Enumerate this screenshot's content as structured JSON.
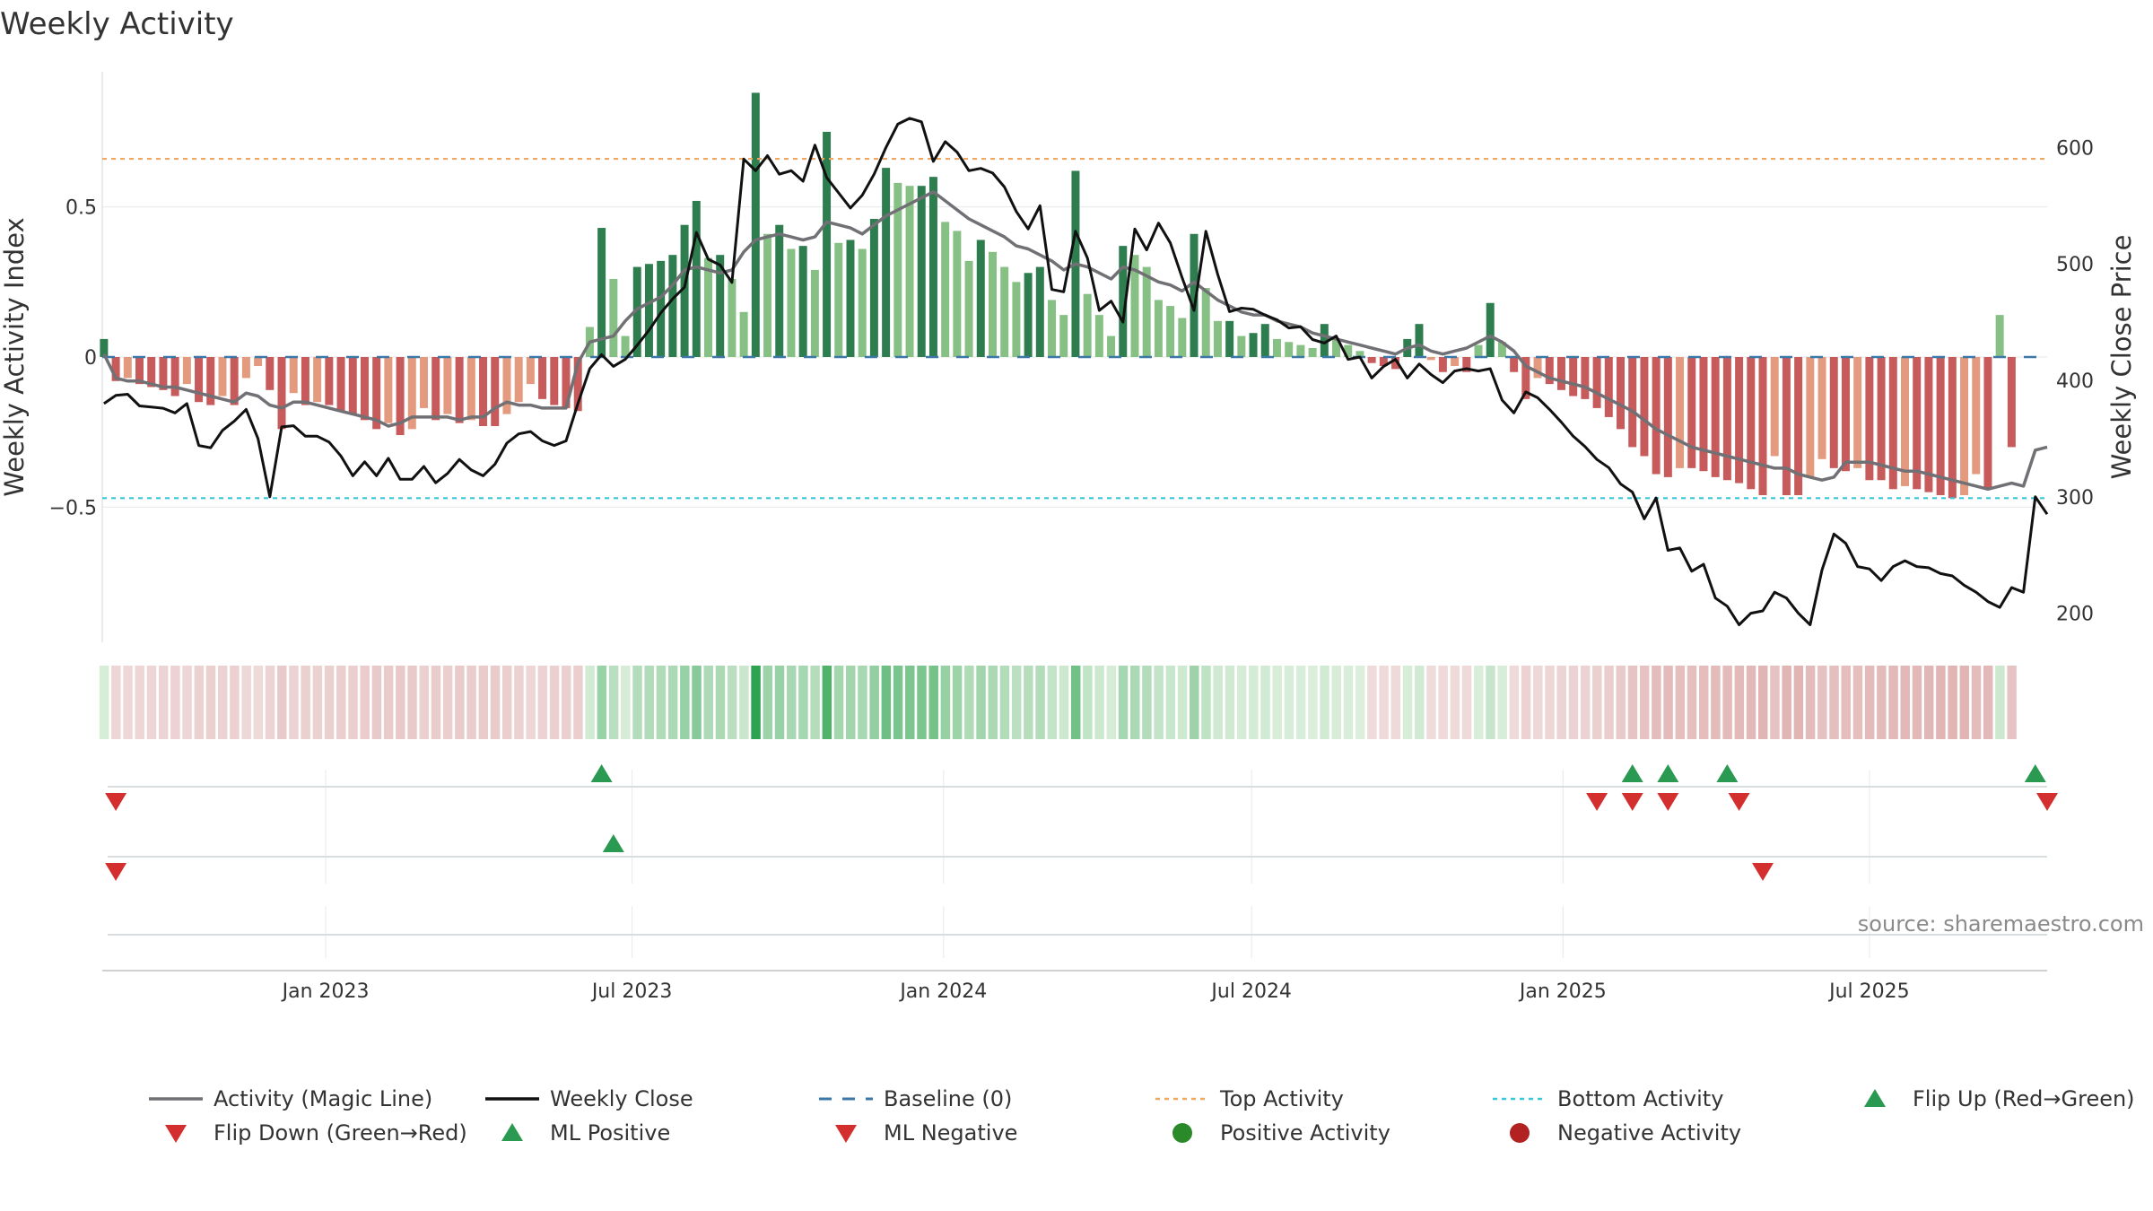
{
  "chart_data": {
    "type": "bar",
    "title": "Weekly Activity",
    "ylabel": "Weekly Activity Index",
    "y2label": "Weekly Close Price",
    "source": "source: sharemaestro.com",
    "ylim": [
      -0.95,
      0.95
    ],
    "y2lim": [
      175,
      665
    ],
    "yticks": [
      {
        "v": 0.5,
        "label": "0.5"
      },
      {
        "v": 0,
        "label": "0"
      },
      {
        "v": -0.5,
        "label": "−0.5"
      }
    ],
    "y2ticks": [
      600,
      500,
      400,
      300,
      200
    ],
    "x_start": "2022-08-22",
    "x_end": "2025-10-14",
    "xticks": [
      {
        "date": "2023-01-01",
        "label": "Jan 2023"
      },
      {
        "date": "2023-07-01",
        "label": "Jul 2023"
      },
      {
        "date": "2024-01-01",
        "label": "Jan 2024"
      },
      {
        "date": "2024-07-01",
        "label": "Jul 2024"
      },
      {
        "date": "2025-01-01",
        "label": "Jan 2025"
      },
      {
        "date": "2025-07-01",
        "label": "Jul 2025"
      }
    ],
    "first_week": "2022-08-23",
    "top_activity": 0.66,
    "bottom_activity": -0.47,
    "colors": {
      "positive_strong": "#2e7d4f",
      "positive_light": "#86c084",
      "negative_strong": "#c75a5a",
      "negative_light": "#e39a7e",
      "magic_line": "#707075",
      "weekly_close": "#111111",
      "baseline": "#3b78a8",
      "top_activity": "#f0a860",
      "bottom_activity": "#35c8d8",
      "flip_up": "#2a9a52",
      "flip_down": "#d32f2f",
      "positive_dot": "#2a8a2a",
      "negative_dot": "#b22222"
    },
    "activity": [
      0.06,
      -0.08,
      -0.07,
      -0.09,
      -0.1,
      -0.11,
      -0.13,
      -0.09,
      -0.15,
      -0.16,
      -0.13,
      -0.16,
      -0.07,
      -0.03,
      -0.11,
      -0.24,
      -0.12,
      -0.16,
      -0.15,
      -0.16,
      -0.18,
      -0.19,
      -0.21,
      -0.24,
      -0.22,
      -0.26,
      -0.24,
      -0.17,
      -0.21,
      -0.19,
      -0.22,
      -0.21,
      -0.23,
      -0.23,
      -0.19,
      -0.15,
      -0.09,
      -0.14,
      -0.16,
      -0.17,
      -0.18,
      0.1,
      0.43,
      0.26,
      0.07,
      0.3,
      0.31,
      0.32,
      0.34,
      0.44,
      0.52,
      0.33,
      0.34,
      0.26,
      0.15,
      0.88,
      0.41,
      0.44,
      0.36,
      0.37,
      0.29,
      0.75,
      0.38,
      0.39,
      0.36,
      0.46,
      0.63,
      0.58,
      0.57,
      0.57,
      0.6,
      0.45,
      0.42,
      0.32,
      0.39,
      0.35,
      0.3,
      0.25,
      0.28,
      0.3,
      0.19,
      0.14,
      0.62,
      0.21,
      0.14,
      0.07,
      0.37,
      0.34,
      0.3,
      0.19,
      0.17,
      0.13,
      0.41,
      0.23,
      0.12,
      0.12,
      0.07,
      0.08,
      0.11,
      0.06,
      0.05,
      0.04,
      0.03,
      0.11,
      0.06,
      0.04,
      0.02,
      -0.02,
      -0.03,
      -0.04,
      0.06,
      0.11,
      -0.01,
      -0.05,
      -0.03,
      -0.05,
      0.04,
      0.18,
      0.05,
      -0.05,
      -0.14,
      -0.07,
      -0.09,
      -0.11,
      -0.13,
      -0.14,
      -0.17,
      -0.2,
      -0.24,
      -0.3,
      -0.33,
      -0.39,
      -0.4,
      -0.37,
      -0.37,
      -0.38,
      -0.4,
      -0.41,
      -0.42,
      -0.44,
      -0.46,
      -0.33,
      -0.46,
      -0.46,
      -0.4,
      -0.34,
      -0.37,
      -0.38,
      -0.37,
      -0.41,
      -0.41,
      -0.44,
      -0.43,
      -0.44,
      -0.45,
      -0.46,
      -0.47,
      -0.46,
      -0.39,
      -0.44,
      0.14,
      -0.3
    ],
    "magic_line": [
      0.01,
      -0.07,
      -0.08,
      -0.08,
      -0.09,
      -0.1,
      -0.1,
      -0.11,
      -0.12,
      -0.13,
      -0.14,
      -0.15,
      -0.12,
      -0.13,
      -0.16,
      -0.17,
      -0.15,
      -0.15,
      -0.16,
      -0.17,
      -0.18,
      -0.19,
      -0.2,
      -0.21,
      -0.23,
      -0.22,
      -0.2,
      -0.2,
      -0.2,
      -0.2,
      -0.21,
      -0.2,
      -0.2,
      -0.17,
      -0.15,
      -0.16,
      -0.16,
      -0.17,
      -0.17,
      -0.17,
      -0.02,
      0.05,
      0.06,
      0.07,
      0.12,
      0.16,
      0.18,
      0.2,
      0.24,
      0.29,
      0.3,
      0.29,
      0.28,
      0.29,
      0.35,
      0.39,
      0.4,
      0.41,
      0.4,
      0.39,
      0.4,
      0.45,
      0.44,
      0.43,
      0.41,
      0.44,
      0.47,
      0.49,
      0.51,
      0.53,
      0.55,
      0.52,
      0.49,
      0.46,
      0.44,
      0.42,
      0.4,
      0.37,
      0.36,
      0.34,
      0.32,
      0.29,
      0.31,
      0.3,
      0.28,
      0.26,
      0.3,
      0.29,
      0.27,
      0.25,
      0.24,
      0.22,
      0.25,
      0.22,
      0.19,
      0.17,
      0.15,
      0.14,
      0.14,
      0.12,
      0.11,
      0.1,
      0.08,
      0.07,
      0.06,
      0.05,
      0.04,
      0.03,
      0.02,
      0.01,
      0.03,
      0.04,
      0.02,
      0.01,
      0.02,
      0.03,
      0.05,
      0.07,
      0.05,
      0.02,
      -0.03,
      -0.05,
      -0.07,
      -0.08,
      -0.09,
      -0.1,
      -0.12,
      -0.14,
      -0.16,
      -0.18,
      -0.21,
      -0.24,
      -0.26,
      -0.28,
      -0.3,
      -0.31,
      -0.32,
      -0.33,
      -0.34,
      -0.35,
      -0.36,
      -0.37,
      -0.37,
      -0.39,
      -0.4,
      -0.41,
      -0.4,
      -0.35,
      -0.35,
      -0.35,
      -0.36,
      -0.37,
      -0.38,
      -0.38,
      -0.39,
      -0.4,
      -0.41,
      -0.42,
      -0.43,
      -0.44,
      -0.43,
      -0.42,
      -0.43,
      -0.31,
      -0.3
    ],
    "weekly_close": [
      380,
      387,
      388,
      378,
      377,
      376,
      372,
      380,
      344,
      342,
      357,
      365,
      375,
      350,
      300,
      360,
      361,
      352,
      352,
      347,
      335,
      318,
      330,
      318,
      333,
      315,
      315,
      326,
      312,
      320,
      332,
      323,
      318,
      328,
      346,
      354,
      356,
      348,
      344,
      348,
      380,
      410,
      422,
      412,
      418,
      430,
      443,
      458,
      470,
      480,
      527,
      504,
      499,
      484,
      590,
      580,
      593,
      577,
      580,
      571,
      602,
      574,
      561,
      548,
      559,
      577,
      600,
      620,
      625,
      622,
      588,
      605,
      596,
      580,
      582,
      578,
      566,
      545,
      530,
      550,
      478,
      476,
      528,
      505,
      460,
      468,
      450,
      530,
      512,
      535,
      518,
      488,
      460,
      528,
      491,
      459,
      462,
      461,
      456,
      452,
      445,
      446,
      435,
      432,
      438,
      418,
      420,
      402,
      412,
      418,
      402,
      414,
      405,
      398,
      408,
      410,
      408,
      410,
      383,
      372,
      390,
      385,
      375,
      364,
      352,
      343,
      332,
      325,
      311,
      304,
      281,
      299,
      254,
      256,
      236,
      242,
      213,
      206,
      190,
      200,
      202,
      218,
      213,
      200,
      190,
      237,
      268,
      260,
      240,
      238,
      228,
      240,
      245,
      240,
      239,
      234,
      232,
      224,
      218,
      210,
      205,
      222,
      218,
      300,
      285
    ],
    "signals": {
      "row1_up_weeks": [
        42,
        129,
        132,
        137,
        163
      ],
      "row1_down_weeks": [
        1,
        126,
        129,
        132,
        138,
        164
      ],
      "row2_up_weeks": [
        43
      ],
      "row2_down_weeks": [
        1,
        140
      ]
    }
  },
  "legend": [
    {
      "label": "Activity (Magic Line)",
      "kind": "line",
      "color": "#707075"
    },
    {
      "label": "Weekly Close",
      "kind": "line",
      "color": "#111111"
    },
    {
      "label": "Baseline (0)",
      "kind": "dashed",
      "color": "#3b78a8"
    },
    {
      "label": "Top Activity",
      "kind": "dotted",
      "color": "#f0a860"
    },
    {
      "label": "Bottom Activity",
      "kind": "dotted",
      "color": "#35c8d8"
    },
    {
      "label": "Flip Up (Red→Green)",
      "kind": "tri-up",
      "color": "#2a9a52"
    },
    {
      "label": "Flip Down (Green→Red)",
      "kind": "tri-down",
      "color": "#d32f2f"
    },
    {
      "label": "ML Positive",
      "kind": "tri-up",
      "color": "#2a9a52"
    },
    {
      "label": "ML Negative",
      "kind": "tri-down",
      "color": "#d32f2f"
    },
    {
      "label": "Positive Activity",
      "kind": "dot",
      "color": "#2a8a2a"
    },
    {
      "label": "Negative Activity",
      "kind": "dot",
      "color": "#b22222"
    }
  ]
}
